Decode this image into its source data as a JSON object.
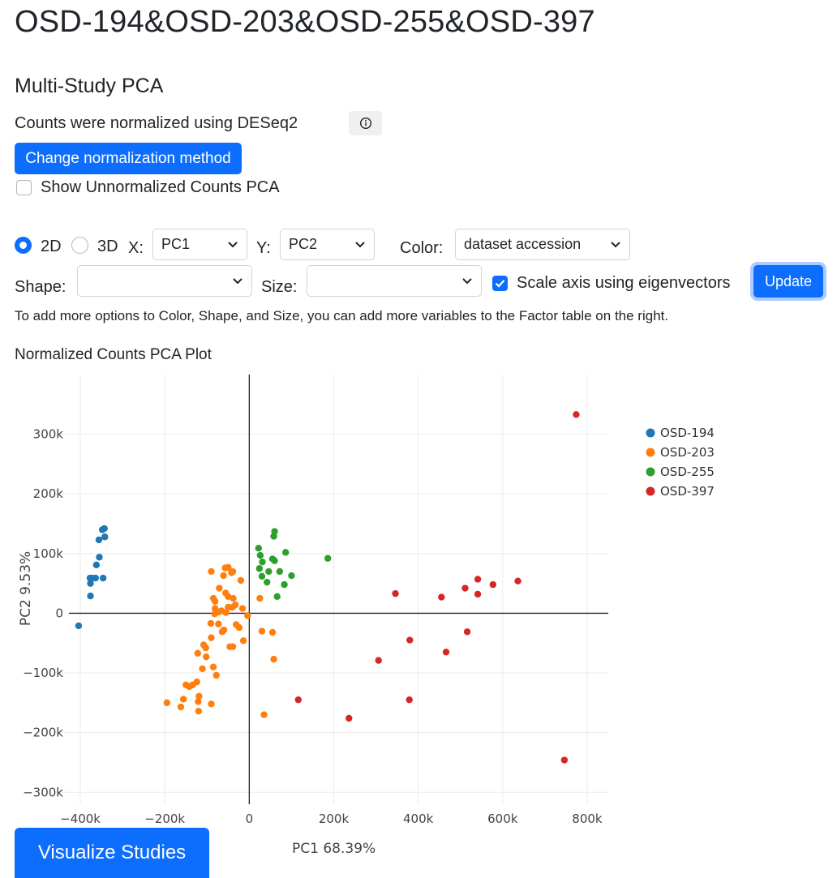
{
  "page": {
    "title": "OSD-194&OSD-203&OSD-255&OSD-397",
    "section_title": "Multi-Study PCA",
    "normalization_text": "Counts were normalized using DESeq2",
    "change_normalization_label": "Change normalization method",
    "show_unnormalized_label": "Show Unnormalized Counts PCA",
    "show_unnormalized_checked": false
  },
  "controls": {
    "mode_2d_label": "2D",
    "mode_3d_label": "3D",
    "mode_selected": "2D",
    "x_label": "X:",
    "x_value": "PC1",
    "y_label": "Y:",
    "y_value": "PC2",
    "color_label": "Color:",
    "color_value": "dataset accession",
    "shape_label": "Shape:",
    "shape_value": "",
    "size_label": "Size:",
    "size_value": "",
    "scale_axis_label": "Scale axis using eigenvectors",
    "scale_axis_checked": true,
    "update_label": "Update",
    "help_text": "To add more options to Color, Shape, and Size, you can add more variables to the Factor table on the right."
  },
  "chart_heading": "Normalized Counts PCA Plot",
  "visualize_label": "Visualize Studies",
  "icons": {
    "info": "info-circle-icon",
    "dropdown": "chevron-down-icon",
    "check": "checkmark-icon"
  },
  "colors": {
    "primary": "#0d6efd",
    "OSD-194": "#1f77b4",
    "OSD-203": "#ff7f0e",
    "OSD-255": "#2ca02c",
    "OSD-397": "#d62728"
  },
  "chart_data": {
    "type": "scatter",
    "title": "",
    "xlabel": "PC1 68.39%",
    "ylabel": "PC2 9.53%",
    "xlim": [
      -450000,
      850000
    ],
    "ylim": [
      -320000,
      400000
    ],
    "x_ticks": [
      -400000,
      -200000,
      0,
      200000,
      400000,
      600000,
      800000
    ],
    "x_tick_labels": [
      "−400k",
      "−200k",
      "0",
      "200k",
      "400k",
      "600k",
      "800k"
    ],
    "y_ticks": [
      -300000,
      -200000,
      -100000,
      0,
      100000,
      200000,
      300000
    ],
    "y_tick_labels": [
      "−300k",
      "−200k",
      "−100k",
      "0",
      "100k",
      "200k",
      "300k"
    ],
    "grid": true,
    "legend_position": "top-right",
    "series": [
      {
        "name": "OSD-194",
        "color": "#1f77b4",
        "points": [
          [
            -404000,
            -21000
          ],
          [
            -376000,
            29000
          ],
          [
            -376000,
            50000
          ],
          [
            -372000,
            59000
          ],
          [
            -377000,
            59000
          ],
          [
            -364000,
            59000
          ],
          [
            -346000,
            59000
          ],
          [
            -362000,
            81000
          ],
          [
            -355000,
            94000
          ],
          [
            -356000,
            123000
          ],
          [
            -342000,
            128000
          ],
          [
            -348000,
            140000
          ],
          [
            -343000,
            142000
          ]
        ]
      },
      {
        "name": "OSD-203",
        "color": "#ff7f0e",
        "points": [
          [
            -50000,
            77000
          ],
          [
            -57000,
            76000
          ],
          [
            -39000,
            70000
          ],
          [
            -42000,
            68000
          ],
          [
            -90000,
            70000
          ],
          [
            -61000,
            63000
          ],
          [
            -20000,
            55000
          ],
          [
            -71000,
            42000
          ],
          [
            -56000,
            34000
          ],
          [
            -50000,
            28000
          ],
          [
            -85000,
            25000
          ],
          [
            -38000,
            25000
          ],
          [
            -81000,
            20000
          ],
          [
            -33000,
            14000
          ],
          [
            -50000,
            10000
          ],
          [
            -40000,
            10000
          ],
          [
            -81000,
            8000
          ],
          [
            -16000,
            8000
          ],
          [
            -66000,
            4000
          ],
          [
            -73000,
            2000
          ],
          [
            -82000,
            -1000
          ],
          [
            -55000,
            1000
          ],
          [
            -4000,
            -4000
          ],
          [
            -73000,
            -18000
          ],
          [
            -91000,
            -17000
          ],
          [
            -60000,
            -28000
          ],
          [
            -31000,
            -19000
          ],
          [
            -64000,
            -31000
          ],
          [
            -24000,
            -24000
          ],
          [
            -90000,
            -41000
          ],
          [
            -108000,
            -53000
          ],
          [
            -103000,
            -58000
          ],
          [
            -39000,
            -56000
          ],
          [
            -46000,
            -56000
          ],
          [
            -122000,
            -67000
          ],
          [
            -102000,
            -73000
          ],
          [
            -85000,
            -90000
          ],
          [
            -111000,
            -93000
          ],
          [
            -78000,
            -104000
          ],
          [
            -124000,
            -115000
          ],
          [
            -142000,
            -123000
          ],
          [
            -134000,
            -120000
          ],
          [
            -150000,
            -120000
          ],
          [
            -119000,
            -139000
          ],
          [
            -90000,
            -152000
          ],
          [
            -156000,
            -144000
          ],
          [
            -195000,
            -150000
          ],
          [
            -121000,
            -148000
          ],
          [
            -162000,
            -157000
          ],
          [
            -120000,
            -164000
          ],
          [
            -14000,
            -46000
          ],
          [
            30000,
            -30000
          ],
          [
            55000,
            -32000
          ],
          [
            25000,
            25000
          ],
          [
            58000,
            -77000
          ],
          [
            35000,
            -170000
          ]
        ]
      },
      {
        "name": "OSD-255",
        "color": "#2ca02c",
        "points": [
          [
            60000,
            137000
          ],
          [
            58000,
            129000
          ],
          [
            22000,
            109000
          ],
          [
            86000,
            102000
          ],
          [
            26000,
            97000
          ],
          [
            186000,
            92000
          ],
          [
            55000,
            91000
          ],
          [
            60000,
            88000
          ],
          [
            31000,
            86000
          ],
          [
            24000,
            75000
          ],
          [
            46000,
            70000
          ],
          [
            72000,
            70000
          ],
          [
            100000,
            63000
          ],
          [
            30000,
            62000
          ],
          [
            42000,
            52000
          ],
          [
            83000,
            48000
          ],
          [
            66000,
            28000
          ]
        ]
      },
      {
        "name": "OSD-397",
        "color": "#d62728",
        "points": [
          [
            774000,
            333000
          ],
          [
            636000,
            54000
          ],
          [
            541000,
            57000
          ],
          [
            577000,
            48000
          ],
          [
            511000,
            42000
          ],
          [
            541000,
            32000
          ],
          [
            346000,
            33000
          ],
          [
            455000,
            27000
          ],
          [
            516000,
            -31000
          ],
          [
            380000,
            -45000
          ],
          [
            466000,
            -65000
          ],
          [
            306000,
            -79000
          ],
          [
            116000,
            -145000
          ],
          [
            379000,
            -145000
          ],
          [
            236000,
            -176000
          ],
          [
            746000,
            -246000
          ]
        ]
      }
    ]
  }
}
